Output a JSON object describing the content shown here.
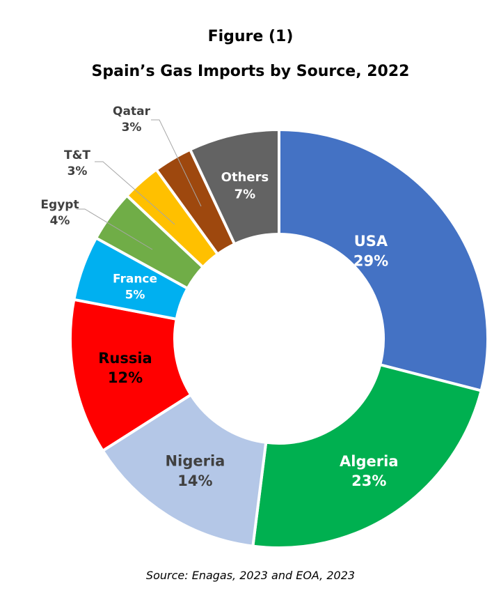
{
  "figure_label": "Figure (1)",
  "source": "Source: Enagas, 2023 and EOA, 2023",
  "chart_data": {
    "type": "pie",
    "variant": "donut",
    "title": "Spain’s Gas Imports by Source, 2022",
    "unit": "%",
    "legend": "none",
    "slices": [
      {
        "label": "USA",
        "value": 29,
        "value_label": "29%",
        "color": "#4472C4"
      },
      {
        "label": "Algeria",
        "value": 23,
        "value_label": "23%",
        "color": "#00B050"
      },
      {
        "label": "Nigeria",
        "value": 14,
        "value_label": "14%",
        "color": "#B4C7E7"
      },
      {
        "label": "Russia",
        "value": 12,
        "value_label": "12%",
        "color": "#FF0000"
      },
      {
        "label": "France",
        "value": 5,
        "value_label": "5%",
        "color": "#00B0F0"
      },
      {
        "label": "Egypt",
        "value": 4,
        "value_label": "4%",
        "color": "#70AD47"
      },
      {
        "label": "T&T",
        "value": 3,
        "value_label": "3%",
        "color": "#FFC000"
      },
      {
        "label": "Qatar",
        "value": 3,
        "value_label": "3%",
        "color": "#9E480E"
      },
      {
        "label": "Others",
        "value": 7,
        "value_label": "7%",
        "color": "#636363"
      }
    ]
  }
}
